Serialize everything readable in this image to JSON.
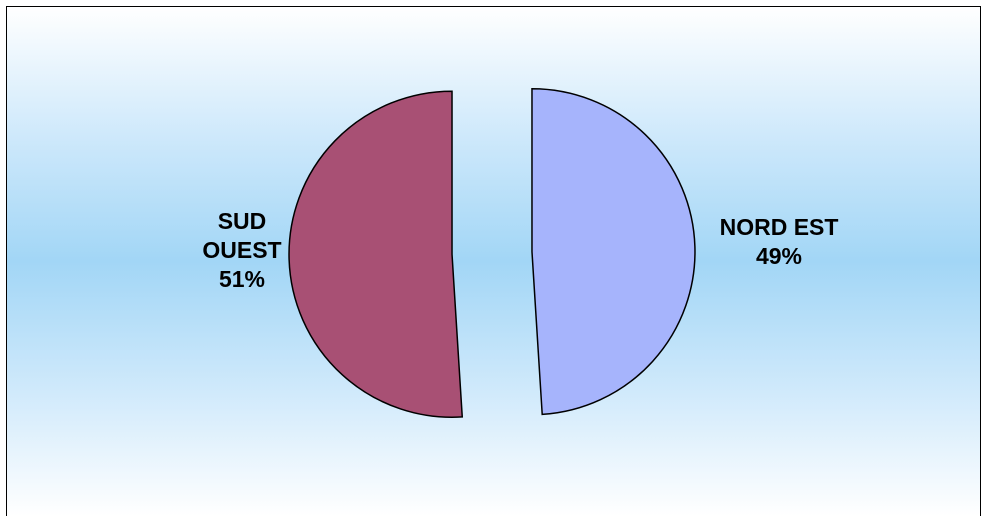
{
  "chart_data": {
    "type": "pie",
    "title": "",
    "slices": [
      {
        "label_lines": [
          "SUD",
          "OUEST"
        ],
        "percent_label": "51%",
        "value": 51,
        "color": "#a85074"
      },
      {
        "label_lines": [
          "NORD EST"
        ],
        "percent_label": "49%",
        "value": 49,
        "color": "#a6b4fc"
      }
    ],
    "exploded": true,
    "legend": "none",
    "background": "vertical gradient white to light blue"
  }
}
